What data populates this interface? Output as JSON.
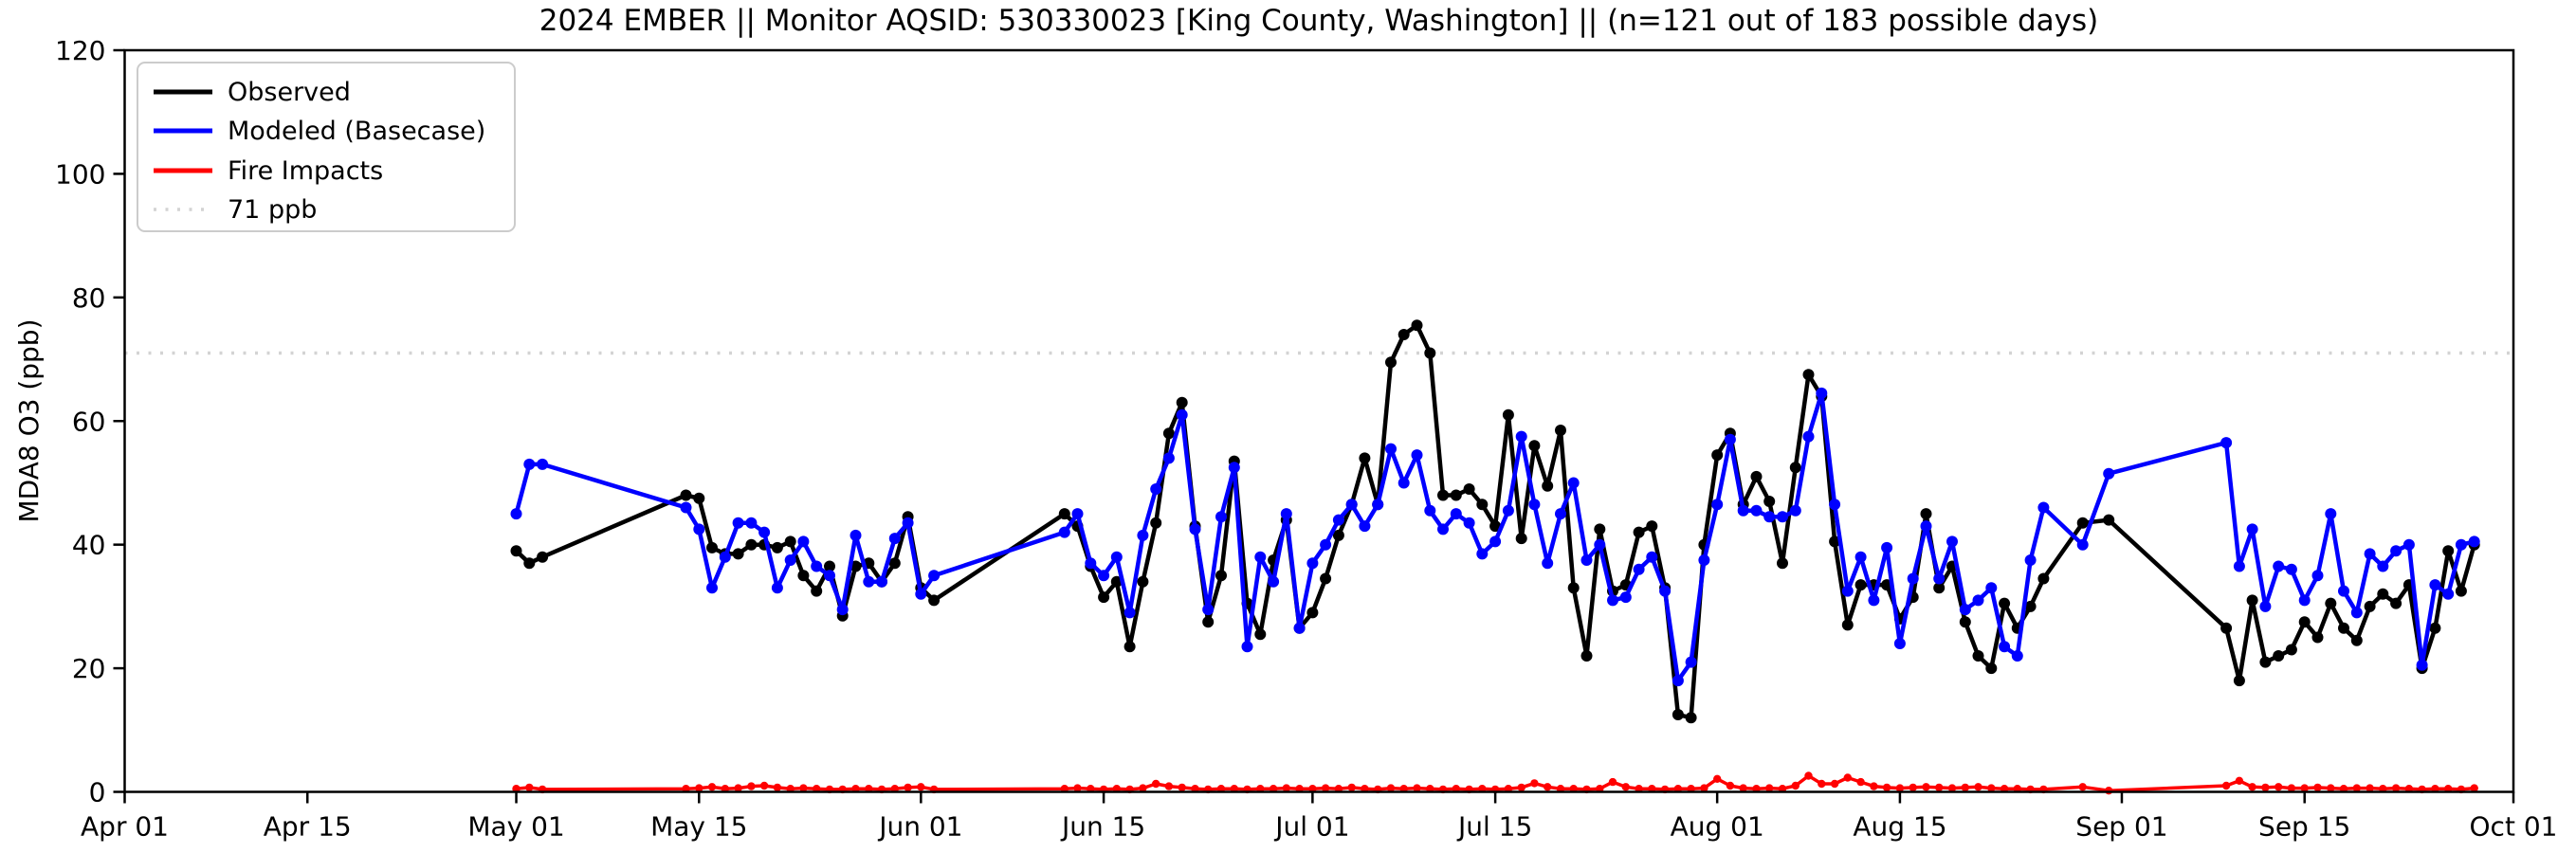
{
  "chart": {
    "title": "2024 EMBER || Monitor AQSID: 530330023 [King County, Washington] || (n=121 out of 183 possible days)",
    "ylabel": "MDA8 O3 (ppb)"
  },
  "chart_data": {
    "type": "line",
    "title": "2024 EMBER || Monitor AQSID: 530330023 [King County, Washington] || (n=121 out of 183 possible days)",
    "xlabel": "",
    "ylabel": "MDA8 O3 (ppb)",
    "ylim": [
      0,
      120
    ],
    "yticks": [
      0,
      20,
      40,
      60,
      80,
      100,
      120
    ],
    "xtick_labels": [
      "Apr 01",
      "Apr 15",
      "May 01",
      "May 15",
      "Jun 01",
      "Jun 15",
      "Jul 01",
      "Jul 15",
      "Aug 01",
      "Aug 15",
      "Sep 01",
      "Sep 15",
      "Oct 01"
    ],
    "x_axis_span_days": 183,
    "grid": false,
    "legend_position": "upper left",
    "threshold": {
      "value": 71,
      "label": "71 ppb",
      "color": "#d3d3d3",
      "style": "dotted"
    },
    "series_meta": [
      {
        "key": "observed",
        "name": "Observed",
        "color": "#000000"
      },
      {
        "key": "modeled",
        "name": "Modeled (Basecase)",
        "color": "#0000ff"
      },
      {
        "key": "fire",
        "name": "Fire Impacts",
        "color": "#ff0000"
      }
    ],
    "note": "Daily MDA8 values; dates absent from the list are missing observation days (gaps connected by straight segments)",
    "dates": [
      "May 01",
      "May 02",
      "May 03",
      "May 14",
      "May 15",
      "May 16",
      "May 17",
      "May 18",
      "May 19",
      "May 20",
      "May 21",
      "May 22",
      "May 23",
      "May 24",
      "May 25",
      "May 26",
      "May 27",
      "May 28",
      "May 29",
      "May 30",
      "May 31",
      "Jun 01",
      "Jun 02",
      "Jun 12",
      "Jun 13",
      "Jun 14",
      "Jun 15",
      "Jun 16",
      "Jun 17",
      "Jun 18",
      "Jun 19",
      "Jun 20",
      "Jun 21",
      "Jun 22",
      "Jun 23",
      "Jun 24",
      "Jun 25",
      "Jun 26",
      "Jun 27",
      "Jun 28",
      "Jun 29",
      "Jun 30",
      "Jul 01",
      "Jul 02",
      "Jul 03",
      "Jul 04",
      "Jul 05",
      "Jul 06",
      "Jul 07",
      "Jul 08",
      "Jul 09",
      "Jul 10",
      "Jul 11",
      "Jul 12",
      "Jul 13",
      "Jul 14",
      "Jul 15",
      "Jul 16",
      "Jul 17",
      "Jul 18",
      "Jul 19",
      "Jul 20",
      "Jul 21",
      "Jul 22",
      "Jul 23",
      "Jul 24",
      "Jul 25",
      "Jul 26",
      "Jul 27",
      "Jul 28",
      "Jul 29",
      "Jul 30",
      "Jul 31",
      "Aug 01",
      "Aug 02",
      "Aug 03",
      "Aug 04",
      "Aug 05",
      "Aug 06",
      "Aug 07",
      "Aug 08",
      "Aug 09",
      "Aug 10",
      "Aug 11",
      "Aug 12",
      "Aug 13",
      "Aug 14",
      "Aug 15",
      "Aug 16",
      "Aug 17",
      "Aug 18",
      "Aug 19",
      "Aug 20",
      "Aug 21",
      "Aug 22",
      "Aug 23",
      "Aug 24",
      "Aug 25",
      "Aug 26",
      "Aug 29",
      "Aug 31",
      "Sep 09",
      "Sep 10",
      "Sep 11",
      "Sep 12",
      "Sep 13",
      "Sep 14",
      "Sep 15",
      "Sep 16",
      "Sep 17",
      "Sep 18",
      "Sep 19",
      "Sep 20",
      "Sep 21",
      "Sep 22",
      "Sep 23",
      "Sep 24",
      "Sep 25",
      "Sep 26",
      "Sep 27",
      "Sep 28"
    ],
    "observed": [
      39,
      37,
      38,
      48,
      47.5,
      39.5,
      38.5,
      38.5,
      40,
      40,
      39.5,
      40.5,
      35,
      32.5,
      36.5,
      28.5,
      36.5,
      37,
      34,
      37,
      44.5,
      33,
      31,
      45,
      43,
      36.5,
      31.5,
      34,
      23.5,
      34,
      43.5,
      58,
      63,
      43,
      27.5,
      35,
      53.5,
      30.5,
      25.5,
      37.5,
      44,
      26.5,
      29,
      34.5,
      41.5,
      46.5,
      54,
      46.5,
      69.5,
      74,
      75.5,
      71,
      48,
      48,
      49,
      46.5,
      43,
      61,
      41,
      56,
      49.5,
      58.5,
      33,
      22,
      42.5,
      32.5,
      33.5,
      42,
      43,
      33,
      12.5,
      12,
      40,
      54.5,
      58,
      46.5,
      51,
      47,
      37,
      52.5,
      67.5,
      64,
      40.5,
      27,
      33.5,
      33.5,
      33.5,
      28,
      31.5,
      45,
      33,
      36.5,
      27.5,
      22,
      20,
      30.5,
      26.5,
      30,
      34.5,
      43.5,
      44,
      26.5,
      18,
      31,
      21,
      22,
      23,
      27.5,
      25,
      30.5,
      26.5,
      24.5,
      30,
      32,
      30.5,
      33.5,
      20,
      26.5,
      39,
      32.5,
      40
    ],
    "modeled": [
      45,
      53,
      53,
      46,
      42.5,
      33,
      38,
      43.5,
      43.5,
      42,
      33,
      37.5,
      40.5,
      36.5,
      35,
      29.5,
      41.5,
      34,
      34,
      41,
      43.5,
      32,
      35,
      42,
      45,
      37,
      35,
      38,
      29,
      41.5,
      49,
      54,
      61,
      42.5,
      29.5,
      44.5,
      52.5,
      23.5,
      38,
      34,
      45,
      26.5,
      37,
      40,
      44,
      46.5,
      43,
      46.5,
      55.5,
      50,
      54.5,
      45.5,
      42.5,
      45,
      43.5,
      38.5,
      40.5,
      45.5,
      57.5,
      46.5,
      37,
      45,
      50,
      37.5,
      40,
      31,
      31.5,
      36,
      38,
      32.5,
      18,
      21,
      37.5,
      46.5,
      57,
      45.5,
      45.5,
      44.5,
      44.5,
      45.5,
      57.5,
      64.5,
      46.5,
      32.5,
      38,
      31,
      39.5,
      24,
      34.5,
      43,
      34.5,
      40.5,
      29.5,
      31,
      33,
      23.5,
      22,
      37.5,
      46,
      40,
      51.5,
      56.5,
      36.5,
      42.5,
      30,
      36.5,
      36,
      31,
      35,
      45,
      32.5,
      29,
      38.5,
      36.5,
      39,
      40,
      20.5,
      33.5,
      32,
      40,
      40.5
    ],
    "fire": [
      0.5,
      0.7,
      0.4,
      0.5,
      0.6,
      0.8,
      0.5,
      0.6,
      0.9,
      1.0,
      0.7,
      0.5,
      0.6,
      0.5,
      0.4,
      0.4,
      0.5,
      0.5,
      0.4,
      0.5,
      0.7,
      0.8,
      0.4,
      0.5,
      0.6,
      0.5,
      0.4,
      0.5,
      0.4,
      0.6,
      1.3,
      0.9,
      0.7,
      0.5,
      0.4,
      0.5,
      0.5,
      0.4,
      0.5,
      0.5,
      0.6,
      0.5,
      0.5,
      0.6,
      0.5,
      0.7,
      0.5,
      0.4,
      0.6,
      0.5,
      0.6,
      0.5,
      0.4,
      0.5,
      0.4,
      0.5,
      0.4,
      0.5,
      0.7,
      1.4,
      0.8,
      0.5,
      0.5,
      0.4,
      0.5,
      1.6,
      0.8,
      0.5,
      0.5,
      0.4,
      0.5,
      0.5,
      0.6,
      2.1,
      1.0,
      0.6,
      0.5,
      0.6,
      0.5,
      1.0,
      2.6,
      1.3,
      1.3,
      2.3,
      1.6,
      0.9,
      0.7,
      0.6,
      0.7,
      0.8,
      0.7,
      0.6,
      0.7,
      0.8,
      0.6,
      0.5,
      0.5,
      0.4,
      0.4,
      0.8,
      0.2,
      1.0,
      1.8,
      0.8,
      0.7,
      0.8,
      0.6,
      0.6,
      0.7,
      0.6,
      0.5,
      0.6,
      0.6,
      0.5,
      0.6,
      0.5,
      0.4,
      0.5,
      0.5,
      0.4,
      0.6
    ]
  }
}
